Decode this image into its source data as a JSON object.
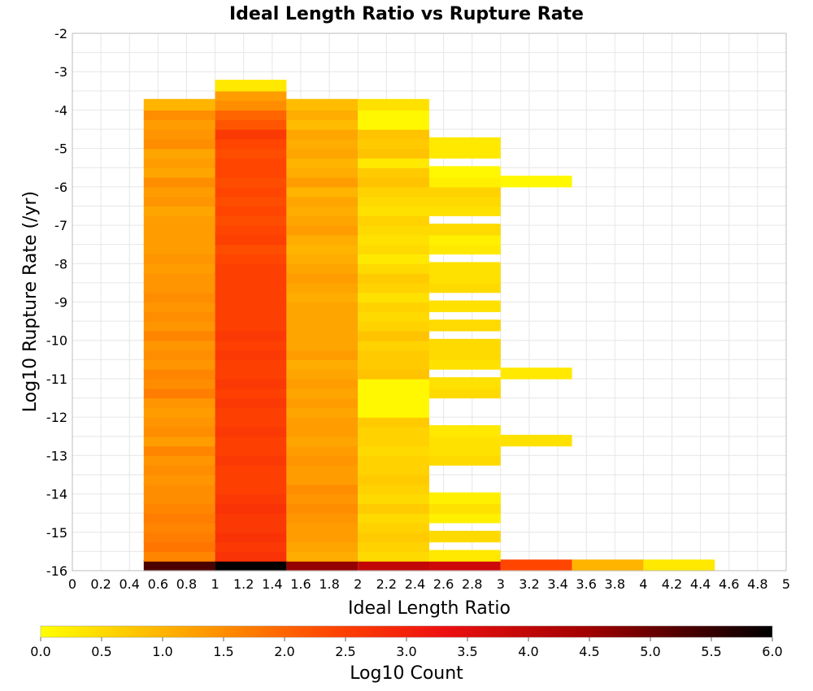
{
  "chart_data": {
    "type": "heatmap",
    "title": "Ideal Length Ratio vs Rupture Rate",
    "xlabel": "Ideal Length Ratio",
    "ylabel": "Log10 Rupture Rate (/yr)",
    "xlim": [
      0,
      5
    ],
    "ylim": [
      -16,
      -2
    ],
    "x_ticks": [
      "0",
      "0.2",
      "0.4",
      "0.6",
      "0.8",
      "1",
      "1.2",
      "1.4",
      "1.6",
      "1.8",
      "2",
      "2.2",
      "2.4",
      "2.6",
      "2.8",
      "3",
      "3.2",
      "3.4",
      "3.6",
      "3.8",
      "4",
      "4.2",
      "4.4",
      "4.6",
      "4.8",
      "5"
    ],
    "y_ticks": [
      "-2",
      "-3",
      "-4",
      "-5",
      "-6",
      "-7",
      "-8",
      "-9",
      "-10",
      "-11",
      "-12",
      "-13",
      "-14",
      "-15",
      "-16"
    ],
    "grid": true,
    "x_bin_width": 0.5,
    "y_bin_height": 0.29,
    "colorbar": {
      "label": "Log10 Count",
      "range": [
        0,
        6
      ],
      "ticks": [
        "0.0",
        "0.5",
        "1.0",
        "1.5",
        "2.0",
        "2.5",
        "3.0",
        "3.5",
        "4.0",
        "4.5",
        "5.0",
        "5.5",
        "6.0"
      ],
      "colormap": [
        "#ffff00",
        "#ffa500",
        "#ff4500",
        "#ee1010",
        "#a00000",
        "#000000"
      ]
    },
    "columns": [
      {
        "x": 0.5,
        "bins": [
          {
            "y": -16.0,
            "value": 5.3
          },
          {
            "y": -15.75,
            "value": 1.6
          },
          {
            "y": -15.5,
            "value": 1.8
          },
          {
            "y": -15.25,
            "value": 1.7
          },
          {
            "y": -15.0,
            "value": 1.6
          },
          {
            "y": -14.75,
            "value": 1.7
          },
          {
            "y": -14.5,
            "value": 1.6
          },
          {
            "y": -14.25,
            "value": 1.5
          },
          {
            "y": -14.0,
            "value": 1.5
          },
          {
            "y": -13.75,
            "value": 1.4
          },
          {
            "y": -13.5,
            "value": 1.5
          },
          {
            "y": -13.25,
            "value": 1.4
          },
          {
            "y": -13.0,
            "value": 1.6
          },
          {
            "y": -12.75,
            "value": 1.3
          },
          {
            "y": -12.5,
            "value": 1.5
          },
          {
            "y": -12.25,
            "value": 1.4
          },
          {
            "y": -12.0,
            "value": 1.3
          },
          {
            "y": -11.75,
            "value": 1.4
          },
          {
            "y": -11.5,
            "value": 1.7
          },
          {
            "y": -11.25,
            "value": 1.5
          },
          {
            "y": -11.0,
            "value": 1.6
          },
          {
            "y": -10.75,
            "value": 1.4
          },
          {
            "y": -10.5,
            "value": 1.5
          },
          {
            "y": -10.25,
            "value": 1.4
          },
          {
            "y": -10.0,
            "value": 1.6
          },
          {
            "y": -9.75,
            "value": 1.4
          },
          {
            "y": -9.5,
            "value": 1.5
          },
          {
            "y": -9.25,
            "value": 1.4
          },
          {
            "y": -9.0,
            "value": 1.5
          },
          {
            "y": -8.75,
            "value": 1.4
          },
          {
            "y": -8.5,
            "value": 1.4
          },
          {
            "y": -8.25,
            "value": 1.3
          },
          {
            "y": -8.0,
            "value": 1.4
          },
          {
            "y": -7.75,
            "value": 1.3
          },
          {
            "y": -7.5,
            "value": 1.3
          },
          {
            "y": -7.25,
            "value": 1.3
          },
          {
            "y": -7.0,
            "value": 1.3
          },
          {
            "y": -6.75,
            "value": 1.2
          },
          {
            "y": -6.5,
            "value": 1.4
          },
          {
            "y": -6.25,
            "value": 1.3
          },
          {
            "y": -6.0,
            "value": 1.5
          },
          {
            "y": -5.75,
            "value": 1.2
          },
          {
            "y": -5.5,
            "value": 1.3
          },
          {
            "y": -5.25,
            "value": 1.2
          },
          {
            "y": -5.0,
            "value": 1.5
          },
          {
            "y": -4.75,
            "value": 1.4
          },
          {
            "y": -4.5,
            "value": 1.3
          },
          {
            "y": -4.25,
            "value": 1.5
          },
          {
            "y": -4.0,
            "value": 1.0
          }
        ]
      },
      {
        "x": 1.0,
        "bins": [
          {
            "y": -16.0,
            "value": 6.0
          },
          {
            "y": -15.75,
            "value": 2.7
          },
          {
            "y": -15.5,
            "value": 2.6
          },
          {
            "y": -15.25,
            "value": 2.7
          },
          {
            "y": -15.0,
            "value": 2.6
          },
          {
            "y": -14.75,
            "value": 2.6
          },
          {
            "y": -14.5,
            "value": 2.7
          },
          {
            "y": -14.25,
            "value": 2.6
          },
          {
            "y": -14.0,
            "value": 2.5
          },
          {
            "y": -13.75,
            "value": 2.5
          },
          {
            "y": -13.5,
            "value": 2.5
          },
          {
            "y": -13.25,
            "value": 2.6
          },
          {
            "y": -13.0,
            "value": 2.5
          },
          {
            "y": -12.75,
            "value": 2.5
          },
          {
            "y": -12.5,
            "value": 2.6
          },
          {
            "y": -12.25,
            "value": 2.5
          },
          {
            "y": -12.0,
            "value": 2.5
          },
          {
            "y": -11.75,
            "value": 2.6
          },
          {
            "y": -11.5,
            "value": 2.5
          },
          {
            "y": -11.25,
            "value": 2.6
          },
          {
            "y": -11.0,
            "value": 2.5
          },
          {
            "y": -10.75,
            "value": 2.5
          },
          {
            "y": -10.5,
            "value": 2.6
          },
          {
            "y": -10.25,
            "value": 2.5
          },
          {
            "y": -10.0,
            "value": 2.6
          },
          {
            "y": -9.75,
            "value": 2.5
          },
          {
            "y": -9.5,
            "value": 2.5
          },
          {
            "y": -9.25,
            "value": 2.5
          },
          {
            "y": -9.0,
            "value": 2.5
          },
          {
            "y": -8.75,
            "value": 2.5
          },
          {
            "y": -8.5,
            "value": 2.5
          },
          {
            "y": -8.25,
            "value": 2.5
          },
          {
            "y": -8.0,
            "value": 2.4
          },
          {
            "y": -7.75,
            "value": 2.3
          },
          {
            "y": -7.5,
            "value": 2.5
          },
          {
            "y": -7.25,
            "value": 2.4
          },
          {
            "y": -7.0,
            "value": 2.3
          },
          {
            "y": -6.75,
            "value": 2.4
          },
          {
            "y": -6.5,
            "value": 2.3
          },
          {
            "y": -6.25,
            "value": 2.4
          },
          {
            "y": -6.0,
            "value": 2.3
          },
          {
            "y": -5.75,
            "value": 2.4
          },
          {
            "y": -5.5,
            "value": 2.4
          },
          {
            "y": -5.25,
            "value": 2.3
          },
          {
            "y": -5.0,
            "value": 2.4
          },
          {
            "y": -4.75,
            "value": 2.6
          },
          {
            "y": -4.5,
            "value": 2.2
          },
          {
            "y": -4.25,
            "value": 2.0
          },
          {
            "y": -4.0,
            "value": 1.5
          },
          {
            "y": -3.75,
            "value": 1.3
          },
          {
            "y": -3.5,
            "value": 0.3
          }
        ]
      },
      {
        "x": 1.5,
        "bins": [
          {
            "y": -16.0,
            "value": 4.6
          },
          {
            "y": -15.75,
            "value": 1.1
          },
          {
            "y": -15.5,
            "value": 1.2
          },
          {
            "y": -15.25,
            "value": 1.3
          },
          {
            "y": -15.0,
            "value": 1.3
          },
          {
            "y": -14.75,
            "value": 1.4
          },
          {
            "y": -14.5,
            "value": 1.5
          },
          {
            "y": -14.25,
            "value": 1.4
          },
          {
            "y": -14.0,
            "value": 1.5
          },
          {
            "y": -13.75,
            "value": 1.3
          },
          {
            "y": -13.5,
            "value": 1.3
          },
          {
            "y": -13.25,
            "value": 1.4
          },
          {
            "y": -13.0,
            "value": 1.3
          },
          {
            "y": -12.75,
            "value": 1.2
          },
          {
            "y": -12.5,
            "value": 1.3
          },
          {
            "y": -12.25,
            "value": 1.3
          },
          {
            "y": -12.0,
            "value": 1.2
          },
          {
            "y": -11.75,
            "value": 1.3
          },
          {
            "y": -11.5,
            "value": 1.2
          },
          {
            "y": -11.25,
            "value": 1.3
          },
          {
            "y": -11.0,
            "value": 1.2
          },
          {
            "y": -10.75,
            "value": 1.1
          },
          {
            "y": -10.5,
            "value": 1.3
          },
          {
            "y": -10.25,
            "value": 1.2
          },
          {
            "y": -10.0,
            "value": 1.2
          },
          {
            "y": -9.75,
            "value": 1.2
          },
          {
            "y": -9.5,
            "value": 1.2
          },
          {
            "y": -9.25,
            "value": 1.2
          },
          {
            "y": -9.0,
            "value": 1.1
          },
          {
            "y": -8.75,
            "value": 1.2
          },
          {
            "y": -8.5,
            "value": 1.3
          },
          {
            "y": -8.25,
            "value": 1.2
          },
          {
            "y": -8.0,
            "value": 1.1
          },
          {
            "y": -7.75,
            "value": 1.0
          },
          {
            "y": -7.5,
            "value": 1.1
          },
          {
            "y": -7.25,
            "value": 1.3
          },
          {
            "y": -7.0,
            "value": 1.2
          },
          {
            "y": -6.75,
            "value": 1.1
          },
          {
            "y": -6.5,
            "value": 1.2
          },
          {
            "y": -6.25,
            "value": 1.0
          },
          {
            "y": -6.0,
            "value": 1.3
          },
          {
            "y": -5.75,
            "value": 1.1
          },
          {
            "y": -5.5,
            "value": 1.0
          },
          {
            "y": -5.25,
            "value": 1.2
          },
          {
            "y": -5.0,
            "value": 1.1
          },
          {
            "y": -4.75,
            "value": 1.2
          },
          {
            "y": -4.5,
            "value": 0.9
          },
          {
            "y": -4.25,
            "value": 1.1
          },
          {
            "y": -4.0,
            "value": 0.9
          }
        ]
      },
      {
        "x": 2.0,
        "bins": [
          {
            "y": -16.0,
            "value": 4.0
          },
          {
            "y": -15.75,
            "value": 0.5
          },
          {
            "y": -15.5,
            "value": 0.6
          },
          {
            "y": -15.25,
            "value": 0.7
          },
          {
            "y": -15.0,
            "value": 0.6
          },
          {
            "y": -14.75,
            "value": 0.5
          },
          {
            "y": -14.5,
            "value": 0.7
          },
          {
            "y": -14.25,
            "value": 0.5
          },
          {
            "y": -14.0,
            "value": 0.6
          },
          {
            "y": -13.75,
            "value": 0.7
          },
          {
            "y": -13.5,
            "value": 0.6
          },
          {
            "y": -13.25,
            "value": 0.6
          },
          {
            "y": -13.0,
            "value": 0.5
          },
          {
            "y": -12.75,
            "value": 0.6
          },
          {
            "y": -12.5,
            "value": 0.6
          },
          {
            "y": -12.25,
            "value": 0.7
          },
          {
            "y": -12.0,
            "value": 0.1
          },
          {
            "y": -11.75,
            "value": 0.1
          },
          {
            "y": -11.5,
            "value": 0.1
          },
          {
            "y": -11.25,
            "value": 0.1
          },
          {
            "y": -11.0,
            "value": 0.8
          },
          {
            "y": -10.75,
            "value": 0.7
          },
          {
            "y": -10.5,
            "value": 0.7
          },
          {
            "y": -10.25,
            "value": 0.6
          },
          {
            "y": -10.0,
            "value": 0.8
          },
          {
            "y": -9.75,
            "value": 0.6
          },
          {
            "y": -9.5,
            "value": 0.5
          },
          {
            "y": -9.25,
            "value": 0.6
          },
          {
            "y": -9.0,
            "value": 0.4
          },
          {
            "y": -8.75,
            "value": 0.6
          },
          {
            "y": -8.5,
            "value": 0.7
          },
          {
            "y": -8.25,
            "value": 0.5
          },
          {
            "y": -8.0,
            "value": 0.3
          },
          {
            "y": -7.75,
            "value": 0.5
          },
          {
            "y": -7.5,
            "value": 0.4
          },
          {
            "y": -7.25,
            "value": 0.5
          },
          {
            "y": -7.0,
            "value": 0.6
          },
          {
            "y": -6.75,
            "value": 0.4
          },
          {
            "y": -6.5,
            "value": 0.5
          },
          {
            "y": -6.25,
            "value": 0.6
          },
          {
            "y": -6.0,
            "value": 0.8
          },
          {
            "y": -5.75,
            "value": 0.7
          },
          {
            "y": -5.5,
            "value": 0.3
          },
          {
            "y": -5.25,
            "value": 0.8
          },
          {
            "y": -5.0,
            "value": 0.7
          },
          {
            "y": -4.75,
            "value": 0.8
          },
          {
            "y": -4.5,
            "value": 0.1
          },
          {
            "y": -4.25,
            "value": 0.1
          },
          {
            "y": -4.0,
            "value": 0.4
          }
        ]
      },
      {
        "x": 2.5,
        "bins": [
          {
            "y": -16.0,
            "value": 3.8
          },
          {
            "y": -15.75,
            "value": 0.3
          },
          {
            "y": -15.25,
            "value": 0.5
          },
          {
            "y": -14.75,
            "value": 0.2
          },
          {
            "y": -14.5,
            "value": 0.4
          },
          {
            "y": -14.25,
            "value": 0.2
          },
          {
            "y": -13.25,
            "value": 0.5
          },
          {
            "y": -13.0,
            "value": 0.4
          },
          {
            "y": -12.75,
            "value": 0.4
          },
          {
            "y": -12.5,
            "value": 0.3
          },
          {
            "y": -11.5,
            "value": 0.5
          },
          {
            "y": -11.25,
            "value": 0.4
          },
          {
            "y": -10.75,
            "value": 0.4
          },
          {
            "y": -10.5,
            "value": 0.5
          },
          {
            "y": -10.25,
            "value": 0.5
          },
          {
            "y": -9.75,
            "value": 0.5
          },
          {
            "y": -9.25,
            "value": 0.4
          },
          {
            "y": -8.75,
            "value": 0.5
          },
          {
            "y": -8.5,
            "value": 0.4
          },
          {
            "y": -8.25,
            "value": 0.4
          },
          {
            "y": -7.75,
            "value": 0.3
          },
          {
            "y": -7.5,
            "value": 0.2
          },
          {
            "y": -7.25,
            "value": 0.5
          },
          {
            "y": -6.75,
            "value": 0.4
          },
          {
            "y": -6.5,
            "value": 0.5
          },
          {
            "y": -6.25,
            "value": 0.6
          },
          {
            "y": -6.0,
            "value": 0.2
          },
          {
            "y": -5.75,
            "value": 0.1
          },
          {
            "y": -5.25,
            "value": 0.3
          },
          {
            "y": -5.0,
            "value": 0.3
          }
        ]
      },
      {
        "x": 3.0,
        "bins": [
          {
            "y": -16.0,
            "value": 2.4
          },
          {
            "y": -12.75,
            "value": 0.4
          },
          {
            "y": -11.0,
            "value": 0.3
          },
          {
            "y": -6.0,
            "value": 0.1
          }
        ]
      },
      {
        "x": 3.5,
        "bins": [
          {
            "y": -16.0,
            "value": 1.0
          }
        ]
      },
      {
        "x": 4.0,
        "bins": [
          {
            "y": -16.0,
            "value": 0.3
          }
        ]
      }
    ]
  }
}
